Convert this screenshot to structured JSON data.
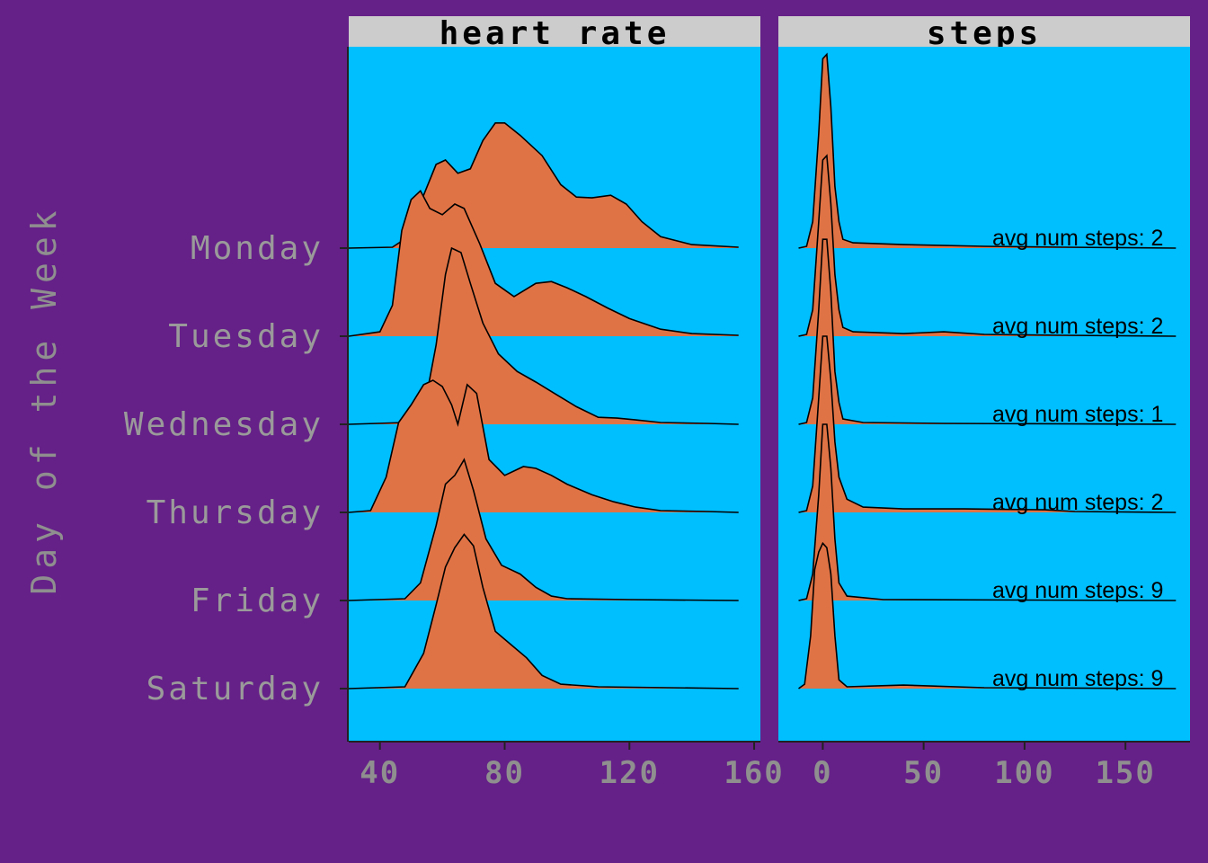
{
  "chart_data": {
    "type": "ridgeline",
    "y_title": "Day of the Week",
    "categories": [
      "Monday",
      "Tuesday",
      "Wednesday",
      "Thursday",
      "Friday",
      "Saturday"
    ],
    "colors": {
      "background": "#652188",
      "panel": "#00BFFF",
      "strip": "#CCCCCC",
      "fill": "#E07345",
      "text": "#8F8F8F"
    },
    "panels": [
      {
        "name": "heart rate",
        "xlim": [
          30,
          162
        ],
        "xticks": [
          40,
          80,
          120,
          160
        ],
        "densities": [
          {
            "day": "Monday",
            "points": [
              [
                30,
                0
              ],
              [
                44,
                0.01
              ],
              [
                50,
                0.15
              ],
              [
                54,
                0.6
              ],
              [
                58,
                0.95
              ],
              [
                61,
                1.0
              ],
              [
                65,
                0.85
              ],
              [
                69,
                0.9
              ],
              [
                73,
                1.22
              ],
              [
                77,
                1.42
              ],
              [
                80,
                1.42
              ],
              [
                85,
                1.28
              ],
              [
                92,
                1.05
              ],
              [
                98,
                0.72
              ],
              [
                103,
                0.58
              ],
              [
                108,
                0.57
              ],
              [
                114,
                0.6
              ],
              [
                119,
                0.5
              ],
              [
                124,
                0.3
              ],
              [
                130,
                0.13
              ],
              [
                140,
                0.04
              ],
              [
                155,
                0.01
              ]
            ]
          },
          {
            "day": "Tuesday",
            "points": [
              [
                30,
                0
              ],
              [
                40,
                0.05
              ],
              [
                44,
                0.35
              ],
              [
                47,
                1.2
              ],
              [
                50,
                1.55
              ],
              [
                53,
                1.65
              ],
              [
                56,
                1.45
              ],
              [
                60,
                1.38
              ],
              [
                64,
                1.5
              ],
              [
                67,
                1.45
              ],
              [
                72,
                1.05
              ],
              [
                77,
                0.6
              ],
              [
                83,
                0.45
              ],
              [
                90,
                0.6
              ],
              [
                95,
                0.62
              ],
              [
                100,
                0.55
              ],
              [
                106,
                0.45
              ],
              [
                113,
                0.32
              ],
              [
                120,
                0.2
              ],
              [
                130,
                0.08
              ],
              [
                140,
                0.03
              ],
              [
                155,
                0.01
              ]
            ]
          },
          {
            "day": "Wednesday",
            "points": [
              [
                30,
                0
              ],
              [
                48,
                0.02
              ],
              [
                54,
                0.15
              ],
              [
                58,
                0.9
              ],
              [
                61,
                1.7
              ],
              [
                63,
                2.0
              ],
              [
                66,
                1.95
              ],
              [
                69,
                1.6
              ],
              [
                73,
                1.15
              ],
              [
                78,
                0.8
              ],
              [
                84,
                0.6
              ],
              [
                90,
                0.48
              ],
              [
                96,
                0.35
              ],
              [
                103,
                0.2
              ],
              [
                110,
                0.08
              ],
              [
                116,
                0.07
              ],
              [
                122,
                0.05
              ],
              [
                130,
                0.02
              ],
              [
                145,
                0.01
              ],
              [
                155,
                0.0
              ]
            ]
          },
          {
            "day": "Thursday",
            "points": [
              [
                30,
                0
              ],
              [
                37,
                0.02
              ],
              [
                42,
                0.4
              ],
              [
                46,
                1.02
              ],
              [
                50,
                1.22
              ],
              [
                54,
                1.45
              ],
              [
                57,
                1.5
              ],
              [
                60,
                1.43
              ],
              [
                63,
                1.22
              ],
              [
                65,
                1.0
              ],
              [
                68,
                1.45
              ],
              [
                71,
                1.35
              ],
              [
                75,
                0.6
              ],
              [
                80,
                0.42
              ],
              [
                86,
                0.52
              ],
              [
                90,
                0.5
              ],
              [
                95,
                0.42
              ],
              [
                100,
                0.32
              ],
              [
                108,
                0.2
              ],
              [
                115,
                0.12
              ],
              [
                122,
                0.06
              ],
              [
                130,
                0.02
              ],
              [
                145,
                0.01
              ],
              [
                155,
                0.0
              ]
            ]
          },
          {
            "day": "Friday",
            "points": [
              [
                30,
                0
              ],
              [
                48,
                0.02
              ],
              [
                53,
                0.2
              ],
              [
                58,
                0.85
              ],
              [
                61,
                1.32
              ],
              [
                64,
                1.42
              ],
              [
                67,
                1.6
              ],
              [
                70,
                1.25
              ],
              [
                74,
                0.7
              ],
              [
                79,
                0.4
              ],
              [
                85,
                0.3
              ],
              [
                90,
                0.15
              ],
              [
                95,
                0.05
              ],
              [
                100,
                0.02
              ],
              [
                120,
                0.01
              ],
              [
                155,
                0.0
              ]
            ]
          },
          {
            "day": "Saturday",
            "points": [
              [
                30,
                0
              ],
              [
                48,
                0.02
              ],
              [
                54,
                0.4
              ],
              [
                58,
                0.95
              ],
              [
                61,
                1.38
              ],
              [
                64,
                1.6
              ],
              [
                67,
                1.75
              ],
              [
                70,
                1.62
              ],
              [
                73,
                1.15
              ],
              [
                77,
                0.65
              ],
              [
                82,
                0.5
              ],
              [
                87,
                0.35
              ],
              [
                92,
                0.15
              ],
              [
                98,
                0.05
              ],
              [
                110,
                0.02
              ],
              [
                155,
                0.0
              ]
            ]
          }
        ]
      },
      {
        "name": "steps",
        "xlim": [
          -22,
          182
        ],
        "xticks": [
          0,
          50,
          100,
          150
        ],
        "annotations": [
          "avg num steps: 2",
          "avg num steps: 2",
          "avg num steps: 1",
          "avg num steps: 2",
          "avg num steps:  9",
          "avg num steps:  9"
        ],
        "densities": [
          {
            "day": "Monday",
            "points": [
              [
                -12,
                0
              ],
              [
                -8,
                0.02
              ],
              [
                -5,
                0.3
              ],
              [
                -2,
                1.3
              ],
              [
                0,
                2.15
              ],
              [
                2,
                2.2
              ],
              [
                4,
                1.6
              ],
              [
                6,
                0.7
              ],
              [
                8,
                0.3
              ],
              [
                10,
                0.1
              ],
              [
                15,
                0.06
              ],
              [
                40,
                0.04
              ],
              [
                80,
                0.02
              ],
              [
                120,
                0.01
              ],
              [
                175,
                0.0
              ]
            ]
          },
          {
            "day": "Tuesday",
            "points": [
              [
                -12,
                0
              ],
              [
                -8,
                0.02
              ],
              [
                -5,
                0.3
              ],
              [
                -2,
                1.3
              ],
              [
                0,
                2.0
              ],
              [
                2,
                2.05
              ],
              [
                4,
                1.5
              ],
              [
                6,
                0.7
              ],
              [
                8,
                0.3
              ],
              [
                10,
                0.1
              ],
              [
                15,
                0.05
              ],
              [
                40,
                0.03
              ],
              [
                60,
                0.05
              ],
              [
                80,
                0.02
              ],
              [
                120,
                0.01
              ],
              [
                175,
                0.0
              ]
            ]
          },
          {
            "day": "Wednesday",
            "points": [
              [
                -12,
                0
              ],
              [
                -8,
                0.02
              ],
              [
                -5,
                0.3
              ],
              [
                -2,
                1.3
              ],
              [
                0,
                2.1
              ],
              [
                2,
                2.1
              ],
              [
                4,
                1.5
              ],
              [
                6,
                0.6
              ],
              [
                8,
                0.25
              ],
              [
                10,
                0.06
              ],
              [
                20,
                0.02
              ],
              [
                60,
                0.01
              ],
              [
                175,
                0.0
              ]
            ]
          },
          {
            "day": "Thursday",
            "points": [
              [
                -12,
                0
              ],
              [
                -8,
                0.02
              ],
              [
                -5,
                0.3
              ],
              [
                -2,
                1.3
              ],
              [
                0,
                2.0
              ],
              [
                2,
                2.0
              ],
              [
                4,
                1.5
              ],
              [
                6,
                0.8
              ],
              [
                8,
                0.4
              ],
              [
                12,
                0.15
              ],
              [
                20,
                0.06
              ],
              [
                40,
                0.04
              ],
              [
                70,
                0.04
              ],
              [
                110,
                0.03
              ],
              [
                125,
                0.01
              ],
              [
                175,
                0.0
              ]
            ]
          },
          {
            "day": "Friday",
            "points": [
              [
                -12,
                0
              ],
              [
                -8,
                0.02
              ],
              [
                -5,
                0.3
              ],
              [
                -2,
                1.2
              ],
              [
                0,
                2.0
              ],
              [
                2,
                2.0
              ],
              [
                4,
                1.5
              ],
              [
                6,
                0.7
              ],
              [
                8,
                0.2
              ],
              [
                12,
                0.05
              ],
              [
                30,
                0.01
              ],
              [
                175,
                0.0
              ]
            ]
          },
          {
            "day": "Saturday",
            "points": [
              [
                -12,
                0
              ],
              [
                -9,
                0.05
              ],
              [
                -6,
                0.6
              ],
              [
                -4,
                1.35
              ],
              [
                -2,
                1.55
              ],
              [
                0,
                1.65
              ],
              [
                2,
                1.6
              ],
              [
                4,
                1.3
              ],
              [
                6,
                0.6
              ],
              [
                8,
                0.1
              ],
              [
                12,
                0.02
              ],
              [
                40,
                0.04
              ],
              [
                80,
                0.01
              ],
              [
                175,
                0.0
              ]
            ]
          }
        ]
      }
    ]
  }
}
